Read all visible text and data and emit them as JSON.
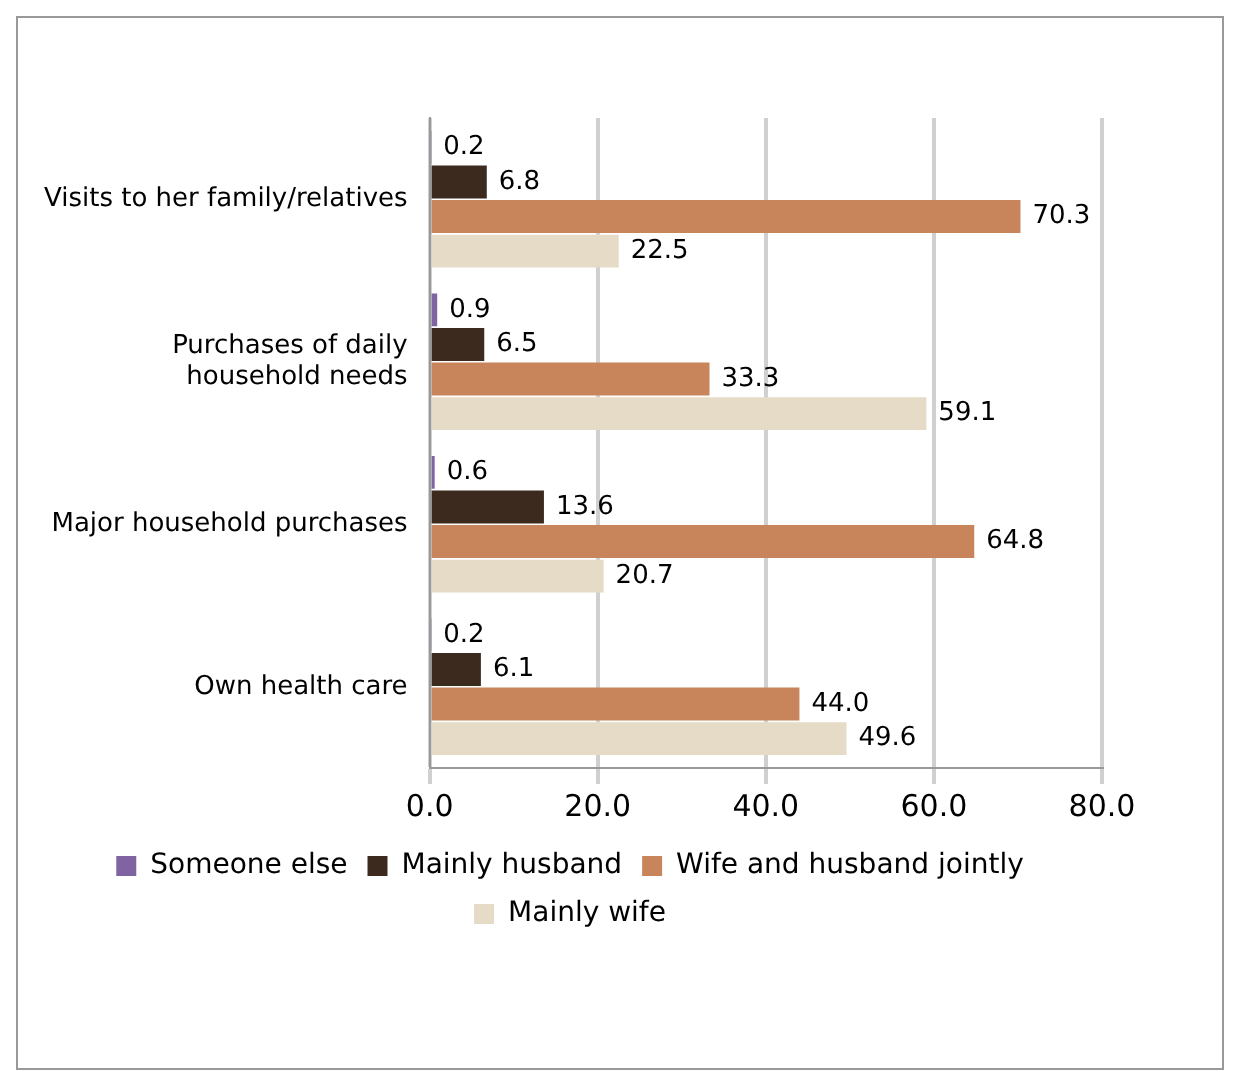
{
  "chart_data": {
    "type": "bar",
    "orientation": "horizontal",
    "categories": [
      "Visits to her family/relatives",
      "Purchases of daily household needs",
      "Major household purchases",
      "Own health care"
    ],
    "series": [
      {
        "name": "Someone else",
        "color": "#8064a2",
        "values": [
          0.2,
          0.9,
          0.6,
          0.2
        ],
        "value_labels": [
          "0.2",
          "0.9",
          "0.6",
          "0.2"
        ]
      },
      {
        "name": "Mainly husband",
        "color": "#3b2a1d",
        "values": [
          6.8,
          6.5,
          13.6,
          6.1
        ],
        "value_labels": [
          "6.8",
          "6.5",
          "13.6",
          "6.1"
        ]
      },
      {
        "name": "Wife and husband jointly",
        "color": "#c8845a",
        "values": [
          70.3,
          33.3,
          64.8,
          44.0
        ],
        "value_labels": [
          "70.3",
          "33.3",
          "64.8",
          "44.0"
        ]
      },
      {
        "name": "Mainly wife",
        "color": "#e6dbc6",
        "values": [
          22.5,
          59.1,
          20.7,
          49.6
        ],
        "value_labels": [
          "22.5",
          "59.1",
          "20.7",
          "49.6"
        ]
      }
    ],
    "xlim": [
      0,
      80
    ],
    "xticks": [
      {
        "value": 0,
        "label": "0.0"
      },
      {
        "value": 20,
        "label": "20.0"
      },
      {
        "value": 40,
        "label": "40.0"
      },
      {
        "value": 60,
        "label": "60.0"
      },
      {
        "value": 80,
        "label": "80.0"
      }
    ],
    "grid": "x",
    "legend": "bottom"
  }
}
